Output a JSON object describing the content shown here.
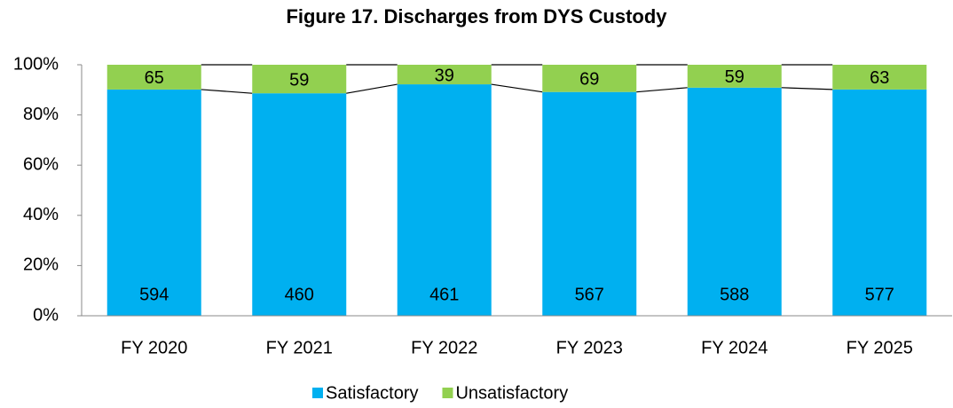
{
  "chart_data": {
    "type": "bar",
    "stacking": "percent",
    "title": "Figure 17. Discharges from DYS Custody",
    "categories": [
      "FY 2020",
      "FY 2021",
      "FY 2022",
      "FY 2023",
      "FY 2024",
      "FY 2025"
    ],
    "series": [
      {
        "name": "Satisfactory",
        "color": "#00B0F0",
        "values": [
          594,
          460,
          461,
          567,
          588,
          577
        ]
      },
      {
        "name": "Unsatisfactory",
        "color": "#92D050",
        "values": [
          65,
          59,
          39,
          69,
          59,
          63
        ]
      }
    ],
    "ylim": [
      0,
      100
    ],
    "yticks": [
      {
        "value": 0,
        "label": "0%"
      },
      {
        "value": 20,
        "label": "20%"
      },
      {
        "value": 40,
        "label": "40%"
      },
      {
        "value": 60,
        "label": "60%"
      },
      {
        "value": 80,
        "label": "80%"
      },
      {
        "value": 100,
        "label": "100%"
      }
    ],
    "legend": "bottom"
  }
}
